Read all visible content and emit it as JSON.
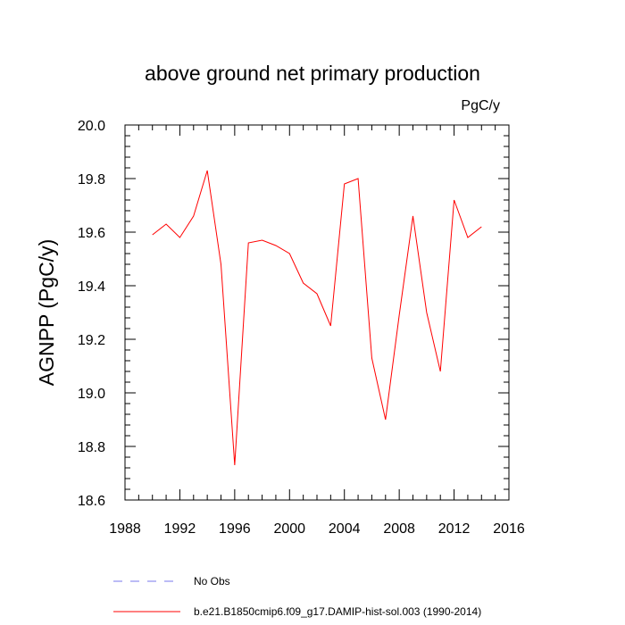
{
  "chart_data": {
    "type": "line",
    "title": "above ground net primary production",
    "units_label": "PgC/y",
    "ylabel": "AGNPP  (PgC/y)",
    "xlabel": "",
    "xlim": [
      1988,
      2016
    ],
    "ylim": [
      18.6,
      20.0
    ],
    "x_ticks": [
      "1988",
      "1992",
      "1996",
      "2000",
      "2004",
      "2008",
      "2012",
      "2016"
    ],
    "y_ticks": [
      "18.6",
      "18.8",
      "19.0",
      "19.2",
      "19.4",
      "19.6",
      "19.8",
      "20.0"
    ],
    "grid": false,
    "legend_position": "bottom",
    "series": [
      {
        "name": "No Obs",
        "color": "#7777ee",
        "dash": true,
        "x": [],
        "values": []
      },
      {
        "name": "b.e21.B1850cmip6.f09_g17.DAMIP-hist-sol.003 (1990-2014)",
        "color": "#ff0000",
        "dash": false,
        "x": [
          1990,
          1991,
          1992,
          1993,
          1994,
          1995,
          1996,
          1997,
          1998,
          1999,
          2000,
          2001,
          2002,
          2003,
          2004,
          2005,
          2006,
          2007,
          2008,
          2009,
          2010,
          2011,
          2012,
          2013,
          2014
        ],
        "values": [
          19.59,
          19.63,
          19.58,
          19.66,
          19.83,
          19.48,
          18.73,
          19.56,
          19.57,
          19.55,
          19.52,
          19.41,
          19.37,
          19.25,
          19.78,
          19.8,
          19.13,
          18.9,
          19.29,
          19.66,
          19.3,
          19.08,
          19.72,
          19.58,
          19.62
        ]
      }
    ]
  }
}
